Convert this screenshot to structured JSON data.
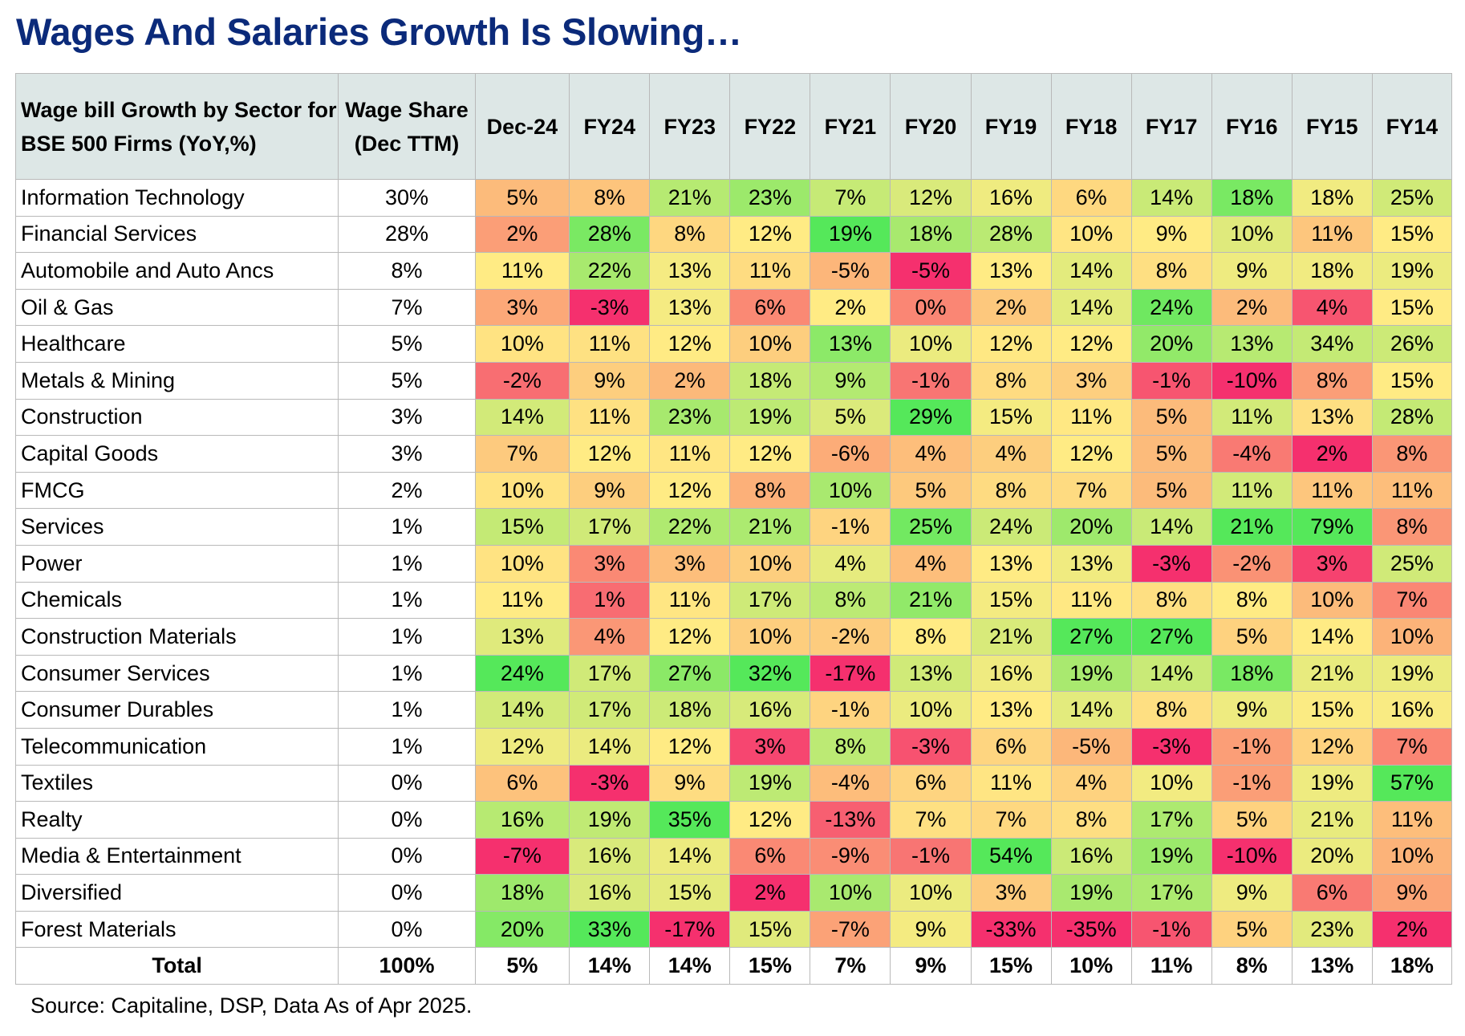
{
  "title": "Wages And Salaries Growth Is Slowing…",
  "source": "Source: Capitaline, DSP, Data As of Apr 2025.",
  "chart_data": {
    "type": "heatmap",
    "title": "Wages And Salaries Growth Is Slowing…",
    "row_header": "Wage bill Growth by Sector for BSE 500 Firms (YoY,%)",
    "share_header": "Wage Share (Dec TTM)",
    "columns": [
      "Dec-24",
      "FY24",
      "FY23",
      "FY22",
      "FY21",
      "FY20",
      "FY19",
      "FY18",
      "FY17",
      "FY16",
      "FY15",
      "FY14"
    ],
    "rows": [
      {
        "sector": "Information Technology",
        "share": "30%",
        "values": [
          5,
          8,
          21,
          23,
          7,
          12,
          16,
          6,
          14,
          18,
          18,
          25
        ]
      },
      {
        "sector": "Financial Services",
        "share": "28%",
        "values": [
          2,
          28,
          8,
          12,
          19,
          18,
          28,
          10,
          9,
          10,
          11,
          15
        ]
      },
      {
        "sector": "Automobile and Auto Ancs",
        "share": "8%",
        "values": [
          11,
          22,
          13,
          11,
          -5,
          -5,
          13,
          14,
          8,
          9,
          18,
          19
        ]
      },
      {
        "sector": "Oil & Gas",
        "share": "7%",
        "values": [
          3,
          -3,
          13,
          6,
          2,
          0,
          2,
          14,
          24,
          2,
          4,
          15
        ]
      },
      {
        "sector": "Healthcare",
        "share": "5%",
        "values": [
          10,
          11,
          12,
          10,
          13,
          10,
          12,
          12,
          20,
          13,
          34,
          26
        ]
      },
      {
        "sector": "Metals & Mining",
        "share": "5%",
        "values": [
          -2,
          9,
          2,
          18,
          9,
          -1,
          8,
          3,
          -1,
          -10,
          8,
          15
        ]
      },
      {
        "sector": "Construction",
        "share": "3%",
        "values": [
          14,
          11,
          23,
          19,
          5,
          29,
          15,
          11,
          5,
          11,
          13,
          28
        ]
      },
      {
        "sector": "Capital Goods",
        "share": "3%",
        "values": [
          7,
          12,
          11,
          12,
          -6,
          4,
          4,
          12,
          5,
          -4,
          2,
          8
        ]
      },
      {
        "sector": "FMCG",
        "share": "2%",
        "values": [
          10,
          9,
          12,
          8,
          10,
          5,
          8,
          7,
          5,
          11,
          11,
          11
        ]
      },
      {
        "sector": "Services",
        "share": "1%",
        "values": [
          15,
          17,
          22,
          21,
          -1,
          25,
          24,
          20,
          14,
          21,
          79,
          8
        ]
      },
      {
        "sector": "Power",
        "share": "1%",
        "values": [
          10,
          3,
          3,
          10,
          4,
          4,
          13,
          13,
          -3,
          -2,
          3,
          25
        ]
      },
      {
        "sector": "Chemicals",
        "share": "1%",
        "values": [
          11,
          1,
          11,
          17,
          8,
          21,
          15,
          11,
          8,
          8,
          10,
          7
        ]
      },
      {
        "sector": "Construction Materials",
        "share": "1%",
        "values": [
          13,
          4,
          12,
          10,
          -2,
          8,
          21,
          27,
          27,
          5,
          14,
          10
        ]
      },
      {
        "sector": "Consumer Services",
        "share": "1%",
        "values": [
          24,
          17,
          27,
          32,
          -17,
          13,
          16,
          19,
          14,
          18,
          21,
          19
        ]
      },
      {
        "sector": "Consumer Durables",
        "share": "1%",
        "values": [
          14,
          17,
          18,
          16,
          -1,
          10,
          13,
          14,
          8,
          9,
          15,
          16
        ]
      },
      {
        "sector": "Telecommunication",
        "share": "1%",
        "values": [
          12,
          14,
          12,
          3,
          8,
          -3,
          6,
          -5,
          -3,
          -1,
          12,
          7
        ]
      },
      {
        "sector": "Textiles",
        "share": "0%",
        "values": [
          6,
          -3,
          9,
          19,
          -4,
          6,
          11,
          4,
          10,
          -1,
          19,
          57
        ]
      },
      {
        "sector": "Realty",
        "share": "0%",
        "values": [
          16,
          19,
          35,
          12,
          -13,
          7,
          7,
          8,
          17,
          5,
          21,
          11
        ]
      },
      {
        "sector": "Media & Entertainment",
        "share": "0%",
        "values": [
          -7,
          16,
          14,
          6,
          -9,
          -1,
          54,
          16,
          19,
          -10,
          20,
          10
        ]
      },
      {
        "sector": "Diversified",
        "share": "0%",
        "values": [
          18,
          16,
          15,
          2,
          10,
          10,
          3,
          19,
          17,
          9,
          6,
          9
        ]
      },
      {
        "sector": "Forest Materials",
        "share": "0%",
        "values": [
          20,
          33,
          -17,
          15,
          -7,
          9,
          -33,
          -35,
          -1,
          5,
          23,
          2
        ]
      }
    ],
    "total": {
      "label": "Total",
      "share": "100%",
      "values": [
        5,
        14,
        14,
        15,
        7,
        9,
        15,
        10,
        11,
        8,
        13,
        18
      ]
    },
    "value_suffix": "%",
    "color_scale": {
      "low": "#f8696b",
      "low_alt": "#f5306e",
      "mid": "#ffeb84",
      "high": "#63be7b",
      "high_alt": "#55e85a"
    },
    "scale_note": "per-column color scale: low=red/pink, middle=yellow, high=green"
  }
}
